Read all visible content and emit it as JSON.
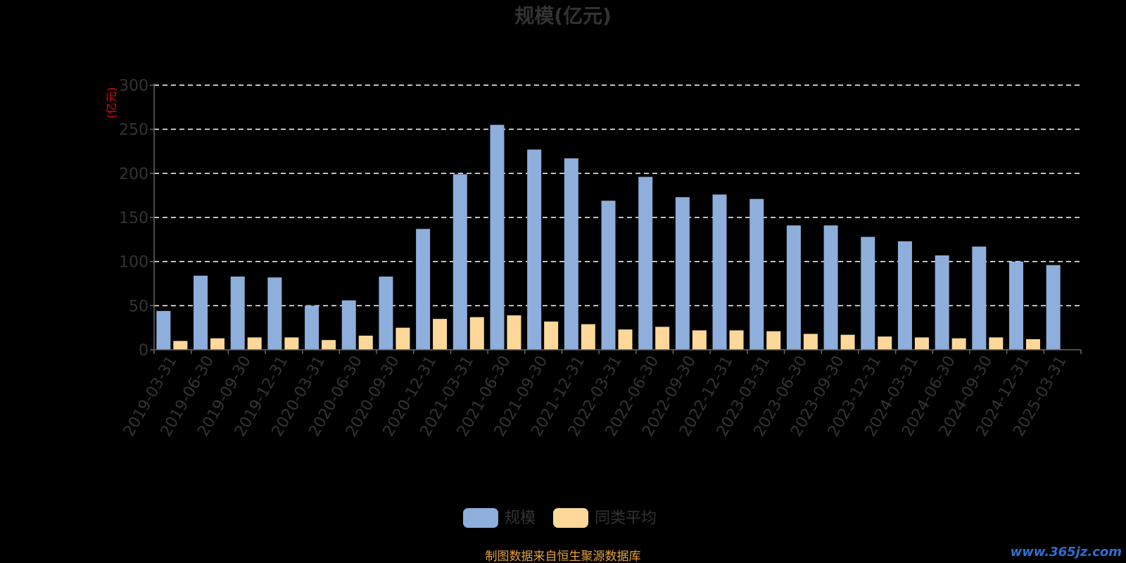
{
  "chart_data": {
    "type": "bar",
    "title": "规模(亿元)",
    "ylabel": "(亿元)",
    "xlabel": "",
    "ylim": [
      0,
      300
    ],
    "yticks": [
      0,
      50,
      100,
      150,
      200,
      250,
      300
    ],
    "grid": true,
    "legend_position": "bottom-center",
    "categories": [
      "2019-03-31",
      "2019-06-30",
      "2019-09-30",
      "2019-12-31",
      "2020-03-31",
      "2020-06-30",
      "2020-09-30",
      "2020-12-31",
      "2021-03-31",
      "2021-06-30",
      "2021-09-30",
      "2021-12-31",
      "2022-03-31",
      "2022-06-30",
      "2022-09-30",
      "2022-12-31",
      "2023-03-31",
      "2023-06-30",
      "2023-09-30",
      "2023-12-31",
      "2024-03-31",
      "2024-06-30",
      "2024-09-30",
      "2024-12-31",
      "2025-03-31"
    ],
    "series": [
      {
        "name": "规模",
        "color": "#8eaedb",
        "values": [
          44,
          84,
          83,
          82,
          50,
          56,
          83,
          137,
          199,
          255,
          227,
          217,
          169,
          196,
          173,
          176,
          171,
          141,
          141,
          128,
          123,
          107,
          117,
          100,
          96
        ]
      },
      {
        "name": "同类平均",
        "color": "#fdd89a",
        "values": [
          10,
          13,
          14,
          14,
          11,
          16,
          25,
          35,
          37,
          39,
          32,
          29,
          23,
          26,
          22,
          22,
          21,
          18,
          17,
          15,
          14,
          13,
          14,
          12,
          null
        ]
      }
    ]
  },
  "footer": {
    "source": "制图数据来自恒生聚源数据库",
    "watermark": "www.365jz.com"
  }
}
